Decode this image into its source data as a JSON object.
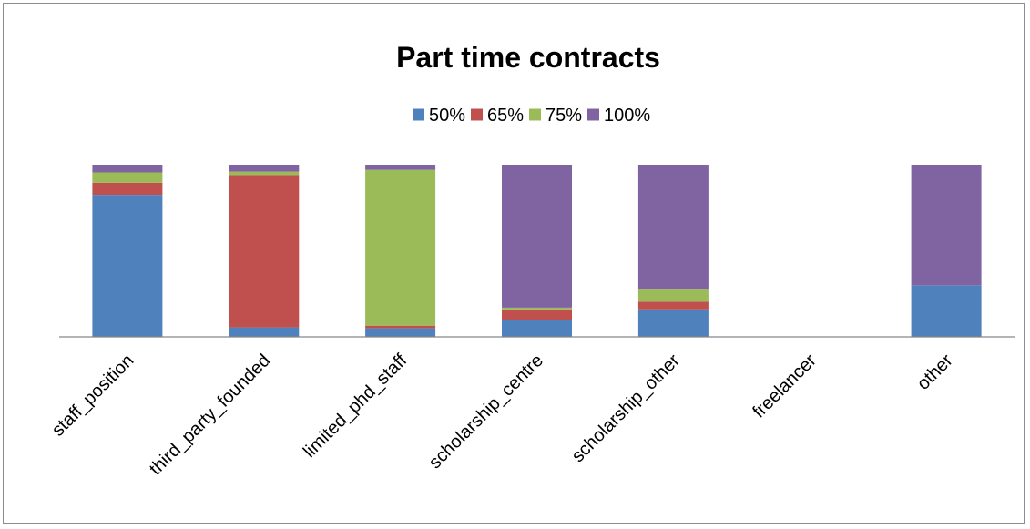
{
  "chart_data": {
    "type": "bar",
    "stacked": true,
    "normalized": true,
    "title": "Part time contracts",
    "xlabel": "",
    "ylabel": "",
    "ylim": [
      0,
      100
    ],
    "grid": false,
    "legend_position": "top",
    "categories": [
      "staff_position",
      "third_party_founded",
      "limited_phd_staff",
      "scholarship_centre",
      "scholarship_other",
      "freelancer",
      "other"
    ],
    "series": [
      {
        "name": "50%",
        "color": "#4F81BD",
        "values": [
          82.5,
          5.5,
          5.0,
          10.0,
          16.0,
          0,
          30.0
        ]
      },
      {
        "name": "65%",
        "color": "#C0504D",
        "values": [
          7.0,
          88.5,
          1.5,
          6.0,
          4.5,
          0,
          0
        ]
      },
      {
        "name": "75%",
        "color": "#9BBB59",
        "values": [
          6.0,
          2.0,
          90.5,
          1.0,
          7.5,
          0,
          0
        ]
      },
      {
        "name": "100%",
        "color": "#8064A2",
        "values": [
          4.5,
          4.0,
          3.0,
          83.0,
          72.0,
          0,
          70.0
        ]
      }
    ]
  }
}
